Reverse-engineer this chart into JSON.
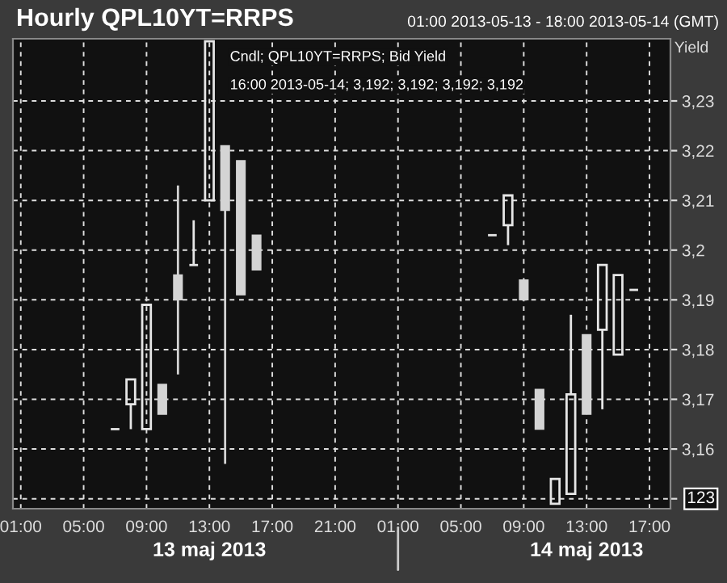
{
  "chart_data": {
    "type": "candlestick",
    "title": "Hourly QPL10YT=RRPS",
    "subtitle": "01:00 2013-05-13 - 18:00 2013-05-14 (GMT)",
    "ylabel": "Yield",
    "x": [
      "2013-05-13T07:00",
      "2013-05-13T08:00",
      "2013-05-13T09:00",
      "2013-05-13T10:00",
      "2013-05-13T11:00",
      "2013-05-13T12:00",
      "2013-05-13T13:00",
      "2013-05-13T14:00",
      "2013-05-13T15:00",
      "2013-05-13T16:00",
      "2013-05-14T07:00",
      "2013-05-14T08:00",
      "2013-05-14T09:00",
      "2013-05-14T10:00",
      "2013-05-14T11:00",
      "2013-05-14T12:00",
      "2013-05-14T13:00",
      "2013-05-14T14:00",
      "2013-05-14T15:00",
      "2013-05-14T16:00"
    ],
    "ohlc": [
      [
        3.164,
        3.164,
        3.164,
        3.164
      ],
      [
        3.169,
        3.174,
        3.164,
        3.174
      ],
      [
        3.164,
        3.189,
        3.164,
        3.189
      ],
      [
        3.173,
        3.173,
        3.167,
        3.167
      ],
      [
        3.195,
        3.213,
        3.175,
        3.19
      ],
      [
        3.197,
        3.206,
        3.197,
        3.197
      ],
      [
        3.21,
        3.242,
        3.21,
        3.242
      ],
      [
        3.221,
        3.221,
        3.157,
        3.208
      ],
      [
        3.218,
        3.218,
        3.191,
        3.191
      ],
      [
        3.203,
        3.203,
        3.196,
        3.196
      ],
      [
        3.203,
        3.203,
        3.203,
        3.203
      ],
      [
        3.205,
        3.211,
        3.201,
        3.211
      ],
      [
        3.194,
        3.194,
        3.19,
        3.19
      ],
      [
        3.172,
        3.172,
        3.164,
        3.164
      ],
      [
        3.149,
        3.154,
        3.149,
        3.154
      ],
      [
        3.151,
        3.187,
        3.151,
        3.171
      ],
      [
        3.183,
        3.183,
        3.167,
        3.167
      ],
      [
        3.184,
        3.197,
        3.168,
        3.197
      ],
      [
        3.179,
        3.195,
        3.179,
        3.195
      ],
      [
        3.192,
        3.192,
        3.192,
        3.192
      ]
    ],
    "colors": [
      "#e6e6e6",
      "#e6e6e6",
      "#e6e6e6",
      "#d4d4d4",
      "#d4d4d4",
      "#e6e6e6",
      "#e6e6e6",
      "#d4d4d4",
      "#d4d4d4",
      "#d4d4d4",
      "#e6e6e6",
      "#e6e6e6",
      "#d4d4d4",
      "#d4d4d4",
      "#e6e6e6",
      "#e6e6e6",
      "#d4d4d4",
      "#e6e6e6",
      "#e6e6e6",
      "#e6e6e6"
    ],
    "xlim": [
      "2013-05-13T00:30",
      "2013-05-14T18:20"
    ],
    "xticks": [
      {
        "value": "2013-05-13T01:00",
        "label": "01:00"
      },
      {
        "value": "2013-05-13T05:00",
        "label": "05:00"
      },
      {
        "value": "2013-05-13T09:00",
        "label": "09:00"
      },
      {
        "value": "2013-05-13T13:00",
        "label": "13:00"
      },
      {
        "value": "2013-05-13T17:00",
        "label": "17:00"
      },
      {
        "value": "2013-05-13T21:00",
        "label": "21:00"
      },
      {
        "value": "2013-05-14T01:00",
        "label": "01:00"
      },
      {
        "value": "2013-05-14T05:00",
        "label": "05:00"
      },
      {
        "value": "2013-05-14T09:00",
        "label": "09:00"
      },
      {
        "value": "2013-05-14T13:00",
        "label": "13:00"
      },
      {
        "value": "2013-05-14T17:00",
        "label": "17:00"
      }
    ],
    "ylim": [
      3.148,
      3.2425
    ],
    "yticks": [
      {
        "value": 3.15,
        "label": null
      },
      {
        "value": 3.16,
        "label": "3,16"
      },
      {
        "value": 3.17,
        "label": "3,17"
      },
      {
        "value": 3.18,
        "label": "3,18"
      },
      {
        "value": 3.19,
        "label": "3,19"
      },
      {
        "value": 3.2,
        "label": "3,2"
      },
      {
        "value": 3.21,
        "label": "3,21"
      },
      {
        "value": 3.22,
        "label": "3,22"
      },
      {
        "value": 3.23,
        "label": "3,23"
      }
    ],
    "grid": true,
    "annotations": [
      "Cndl; QPL10YT=RRPS; Bid Yield",
      "16:00 2013-05-14; 3,192; 3,192; 3,192; 3,192",
      "13 maj 2013",
      "14 maj 2013",
      "123"
    ]
  }
}
